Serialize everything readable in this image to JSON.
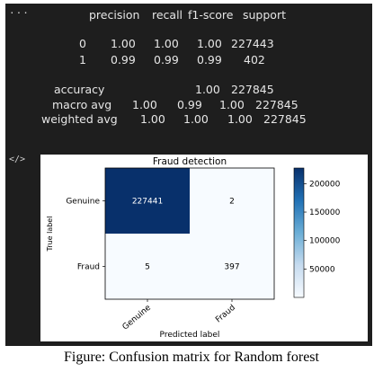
{
  "toolbar": {
    "ellipsis": "···",
    "code_icon": "</>"
  },
  "report": {
    "headers": [
      "precision",
      "recall",
      "f1-score",
      "support"
    ],
    "rows": [
      {
        "label": "0",
        "precision": "1.00",
        "recall": "1.00",
        "f1": "1.00",
        "support": "227443"
      },
      {
        "label": "1",
        "precision": "0.99",
        "recall": "0.99",
        "f1": "0.99",
        "support": "402"
      }
    ],
    "accuracy": {
      "label": "accuracy",
      "f1": "1.00",
      "support": "227845"
    },
    "macro": {
      "label": "macro avg",
      "precision": "1.00",
      "recall": "0.99",
      "f1": "1.00",
      "support": "227845"
    },
    "weighted": {
      "label": "weighted avg",
      "precision": "1.00",
      "recall": "1.00",
      "f1": "1.00",
      "support": "227845"
    }
  },
  "chart_data": {
    "type": "heatmap",
    "title": "Fraud detection",
    "xlabel": "Predicted label",
    "ylabel": "True label",
    "x_categories": [
      "Genuine",
      "Fraud"
    ],
    "y_categories": [
      "Genuine",
      "Fraud"
    ],
    "values": [
      [
        227441,
        2
      ],
      [
        5,
        397
      ]
    ],
    "value_labels": [
      [
        "227441",
        "2"
      ],
      [
        "5",
        "397"
      ]
    ],
    "colormap": "Blues",
    "colors": {
      "low": "#f7fbff",
      "high": "#08306b",
      "dark_text": "#ffffff",
      "light_text": "#000000"
    },
    "colorbar": {
      "ticks": [
        50000,
        100000,
        150000,
        200000
      ],
      "tick_labels": [
        "50000",
        "100000",
        "150000",
        "200000"
      ],
      "min": 2,
      "max": 227441
    }
  },
  "caption": "Figure: Confusion matrix for Random forest"
}
